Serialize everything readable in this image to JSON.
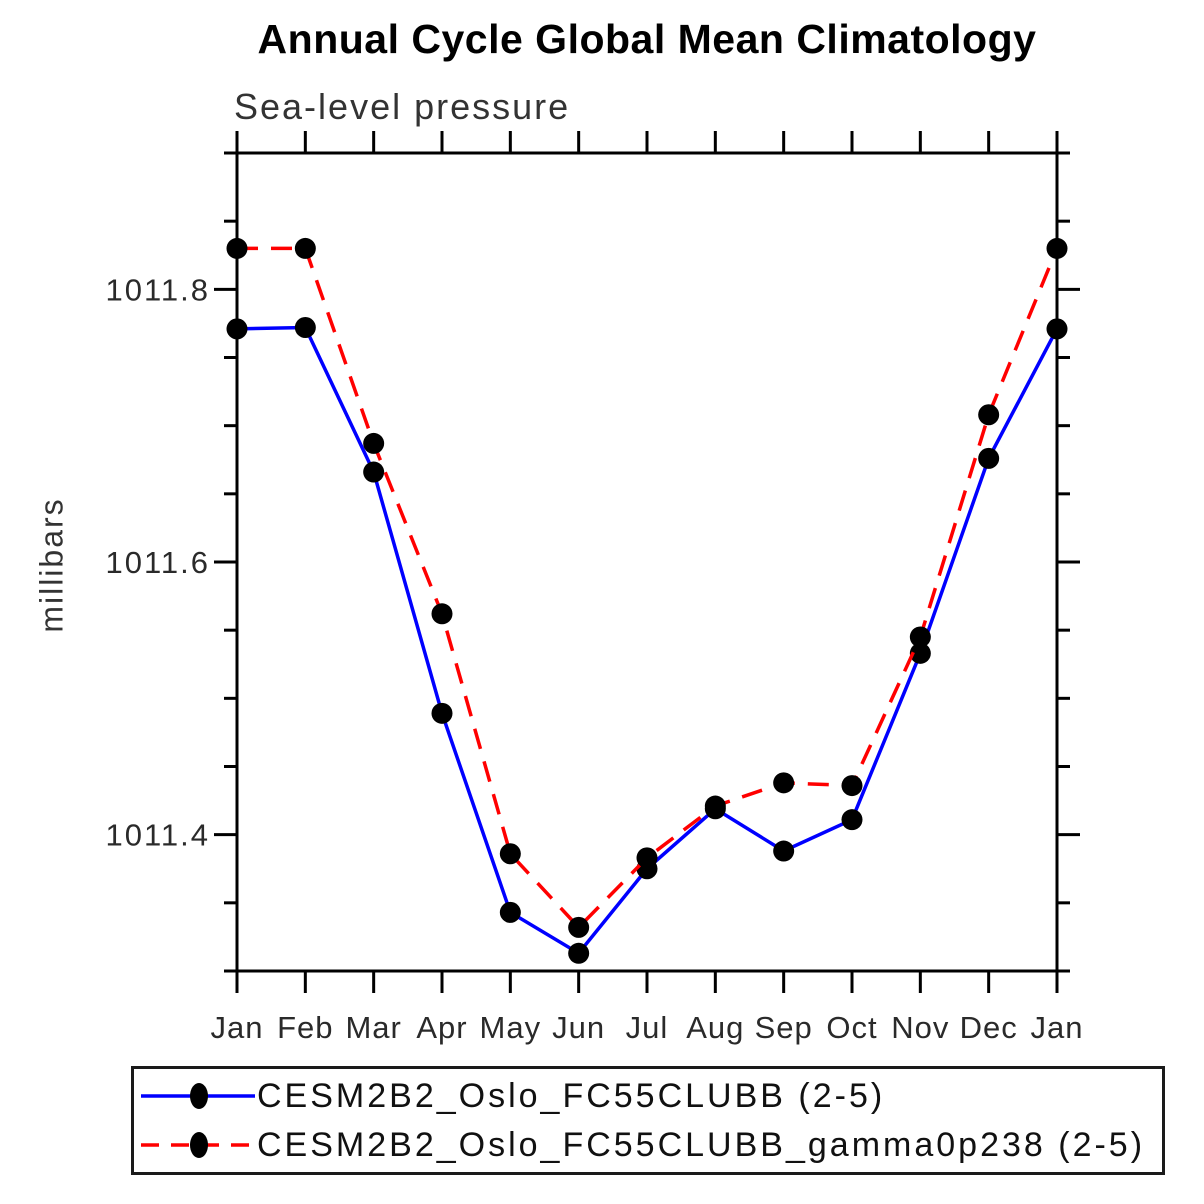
{
  "title": "Annual Cycle Global Mean Climatology",
  "subtitle": "Sea-level pressure",
  "ylabel": "millibars",
  "marker_color": "#000000",
  "axis_color": "#000000",
  "tick_label_color": "#2a2a2a",
  "chart_data": {
    "type": "line",
    "title": "Annual Cycle Global Mean Climatology",
    "subtitle": "Sea-level pressure",
    "ylabel": "millibars",
    "categories": [
      "Jan",
      "Feb",
      "Mar",
      "Apr",
      "May",
      "Jun",
      "Jul",
      "Aug",
      "Sep",
      "Oct",
      "Nov",
      "Dec",
      "Jan"
    ],
    "series": [
      {
        "name": "CESM2B2_Oslo_FC55CLUBB (2-5)",
        "color": "#0000ff",
        "line_style": "solid",
        "marker": "filled-circle",
        "marker_color": "#000000",
        "values": [
          1011.771,
          1011.772,
          1011.666,
          1011.489,
          1011.343,
          1011.313,
          1011.375,
          1011.419,
          1011.388,
          1011.411,
          1011.533,
          1011.676,
          1011.771
        ]
      },
      {
        "name": "CESM2B2_Oslo_FC55CLUBB_gamma0p238 (2-5)",
        "color": "#ff0000",
        "line_style": "dashed",
        "marker": "filled-circle",
        "marker_color": "#000000",
        "values": [
          1011.83,
          1011.83,
          1011.687,
          1011.562,
          1011.386,
          1011.332,
          1011.383,
          1011.421,
          1011.438,
          1011.436,
          1011.545,
          1011.708,
          1011.83
        ]
      }
    ],
    "ylim": [
      1011.3,
      1011.9
    ],
    "ytick_values": [
      1011.4,
      1011.6,
      1011.8
    ],
    "ytick_labels": [
      "1011.4",
      "1011.6",
      "1011.8"
    ],
    "minor_tick_step": 0.05,
    "grid": false,
    "legend_position": "bottom"
  }
}
